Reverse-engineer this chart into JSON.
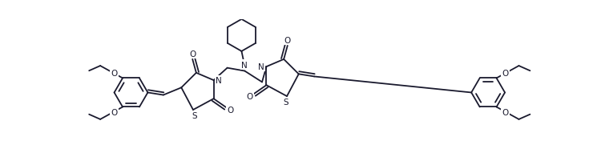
{
  "bg_color": "#ffffff",
  "line_color": "#1a1a2e",
  "line_width": 1.3,
  "figsize": [
    7.5,
    2.07
  ],
  "dpi": 100,
  "xlim": [
    0,
    7.5
  ],
  "ylim": [
    0,
    2.07
  ]
}
